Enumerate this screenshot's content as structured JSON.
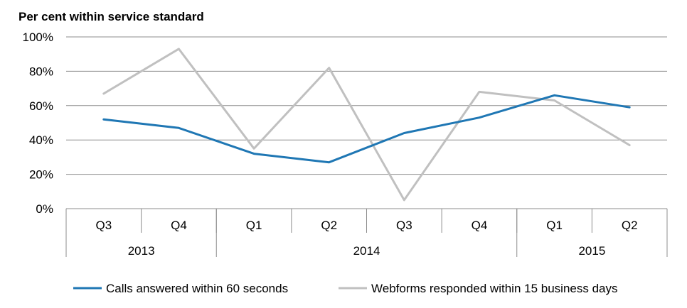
{
  "chart_data": {
    "type": "line",
    "ylabel": "Per cent within service standard",
    "ylim": [
      0,
      100
    ],
    "yticks": [
      0,
      20,
      40,
      60,
      80,
      100
    ],
    "ytick_labels": [
      "0%",
      "20%",
      "40%",
      "60%",
      "80%",
      "100%"
    ],
    "categories": [
      "Q3",
      "Q4",
      "Q1",
      "Q2",
      "Q3",
      "Q4",
      "Q1",
      "Q2"
    ],
    "year_groups": [
      {
        "label": "2013",
        "count": 2
      },
      {
        "label": "2014",
        "count": 4
      },
      {
        "label": "2015",
        "count": 2
      }
    ],
    "grid": true,
    "legend_position": "bottom",
    "series": [
      {
        "name": "Calls answered within 60 seconds",
        "color": "#1f77b4",
        "values": [
          52,
          47,
          32,
          27,
          44,
          53,
          66,
          59
        ]
      },
      {
        "name": "Webforms responded within 15 business days",
        "color": "#c0c0c0",
        "values": [
          67,
          93,
          35,
          82,
          5,
          68,
          63,
          37
        ]
      }
    ]
  }
}
